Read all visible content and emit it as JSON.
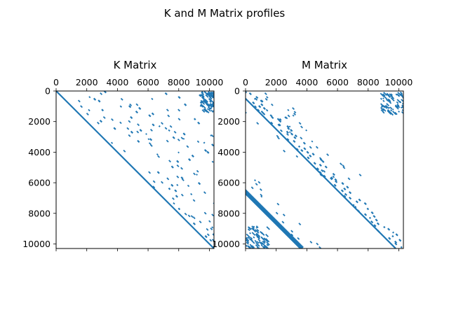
{
  "figure": {
    "suptitle": "K and M Matrix profiles"
  },
  "chart_data": [
    {
      "type": "spy",
      "title": "K Matrix",
      "matrix_size": 10300,
      "xlim": [
        0,
        10300
      ],
      "ylim": [
        10300,
        0
      ],
      "ticks": [
        0,
        2000,
        4000,
        6000,
        8000,
        10000
      ],
      "tick_labels": [
        "0",
        "2000",
        "4000",
        "6000",
        "8000",
        "10000"
      ],
      "x_axis_position": "top",
      "color": "#1f77b4",
      "bands": [
        {
          "r0": 0,
          "r1": 10300,
          "c0": 0,
          "c1": 10300
        },
        {
          "r0": 0,
          "r1": 10300,
          "c0": 200,
          "c1": 10500
        },
        {
          "r0": 0,
          "r1": 5800,
          "c0": 500,
          "c1": 6300
        },
        {
          "r0": 0,
          "r1": 5600,
          "c0": 1200,
          "c1": 6800
        },
        {
          "r0": 5800,
          "r1": 10300,
          "c0": 6000,
          "c1": 10500
        },
        {
          "r0": 7500,
          "r1": 10300,
          "c0": 7900,
          "c1": 10700
        }
      ],
      "blocks": [
        {
          "r0": 0,
          "r1": 1300,
          "c0": 9400,
          "c1": 10300
        }
      ]
    },
    {
      "type": "spy",
      "title": "M Matrix",
      "matrix_size": 10300,
      "xlim": [
        0,
        10300
      ],
      "ylim": [
        10300,
        0
      ],
      "ticks": [
        0,
        2000,
        4000,
        6000,
        8000,
        10000
      ],
      "tick_labels": [
        "0",
        "2000",
        "4000",
        "6000",
        "8000",
        "10000"
      ],
      "x_axis_position": "top",
      "color": "#1f77b4",
      "bands": [
        {
          "r0": 0,
          "r1": 10300,
          "c0": -500,
          "c1": 500
        },
        {
          "r0": 0,
          "r1": 5800,
          "c0": -1500,
          "c1": 1500
        },
        {
          "r0": 0,
          "r1": 5800,
          "c0": -800,
          "c1": 2000
        },
        {
          "r0": 5800,
          "r1": 10300,
          "c0": -800,
          "c1": 800
        }
      ],
      "blocks": [
        {
          "r0": 0,
          "r1": 1400,
          "c0": 8800,
          "c1": 10300
        },
        {
          "r0": 8800,
          "r1": 10300,
          "c0": 0,
          "c1": 1400
        }
      ]
    }
  ]
}
